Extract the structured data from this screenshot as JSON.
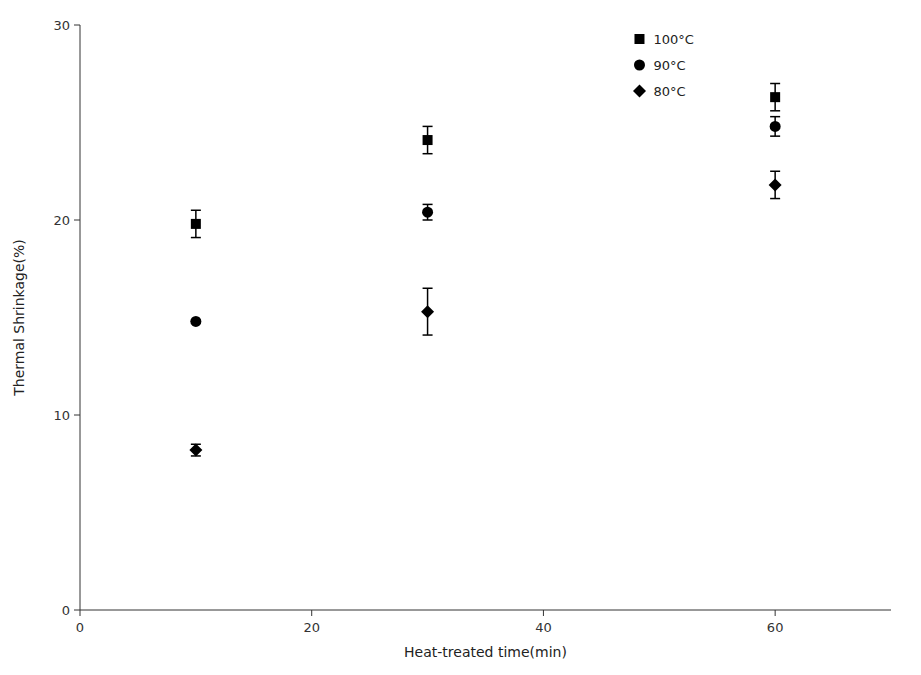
{
  "chart_data": {
    "type": "scatter",
    "xlabel": "Heat-treated time(min)",
    "ylabel": "Thermal Shrinkage(%)",
    "xlim": [
      0,
      70
    ],
    "ylim": [
      0,
      30
    ],
    "xticks": [
      0,
      20,
      40,
      60
    ],
    "yticks": [
      0,
      10,
      20,
      30
    ],
    "grid": false,
    "legend": "upper right",
    "series": [
      {
        "name": "100°C",
        "marker": "square",
        "color": "black",
        "x": [
          10,
          30,
          60
        ],
        "values": [
          19.8,
          24.1,
          26.3
        ],
        "errors": [
          0.7,
          0.7,
          0.7
        ]
      },
      {
        "name": "90°C",
        "marker": "circle",
        "color": "black",
        "x": [
          10,
          30,
          60
        ],
        "values": [
          14.8,
          20.4,
          24.8
        ],
        "errors": [
          0.0,
          0.4,
          0.5
        ]
      },
      {
        "name": "80°C",
        "marker": "diamond",
        "color": "black",
        "x": [
          10,
          30,
          60
        ],
        "values": [
          8.2,
          15.3,
          21.8
        ],
        "errors": [
          0.3,
          1.2,
          0.7
        ]
      }
    ]
  }
}
